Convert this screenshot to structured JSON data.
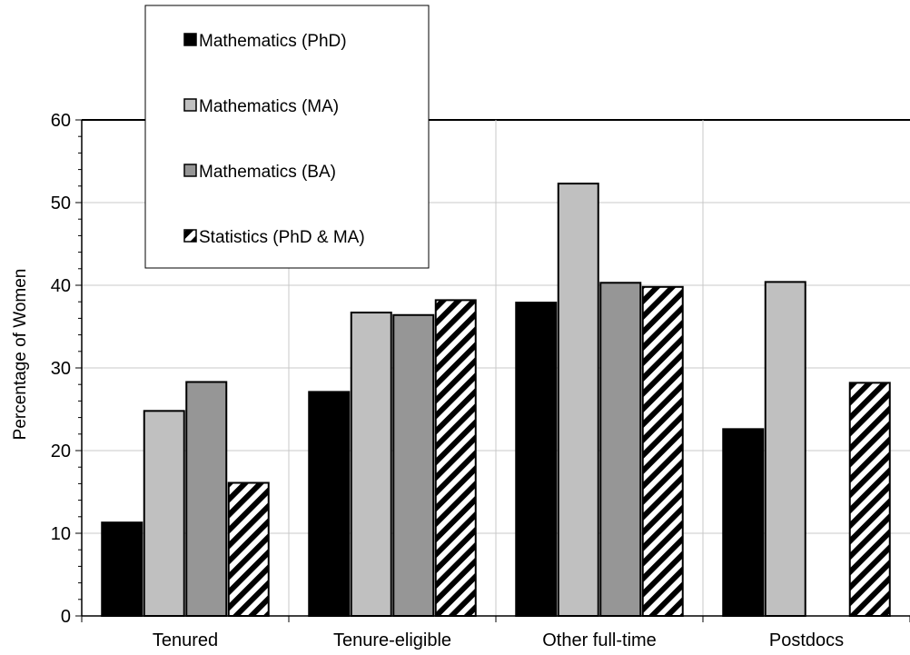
{
  "chart_data": {
    "type": "bar",
    "categories": [
      "Tenured",
      "Tenure-eligible",
      "Other full-time",
      "Postdocs"
    ],
    "series": [
      {
        "name": "Mathematics (PhD)",
        "values": [
          11.3,
          27.1,
          37.9,
          22.6
        ],
        "fill": "#000000",
        "pattern": "solid"
      },
      {
        "name": "Mathematics (MA)",
        "values": [
          24.8,
          36.7,
          52.3,
          40.4
        ],
        "fill": "#c0c0c0",
        "pattern": "solid"
      },
      {
        "name": "Mathematics (BA)",
        "values": [
          28.3,
          36.4,
          40.3,
          null
        ],
        "fill": "#969696",
        "pattern": "solid"
      },
      {
        "name": "Statistics (PhD & MA)",
        "values": [
          16.1,
          38.2,
          39.8,
          28.2
        ],
        "fill": "#ffffff",
        "pattern": "diagonal-stripes"
      }
    ],
    "ylabel": "Percentage of Women",
    "xlabel": "",
    "ylim": [
      0,
      60
    ],
    "yticks": [
      0,
      10,
      20,
      30,
      40,
      50,
      60
    ],
    "grid": true,
    "legend_position": "top-left"
  }
}
